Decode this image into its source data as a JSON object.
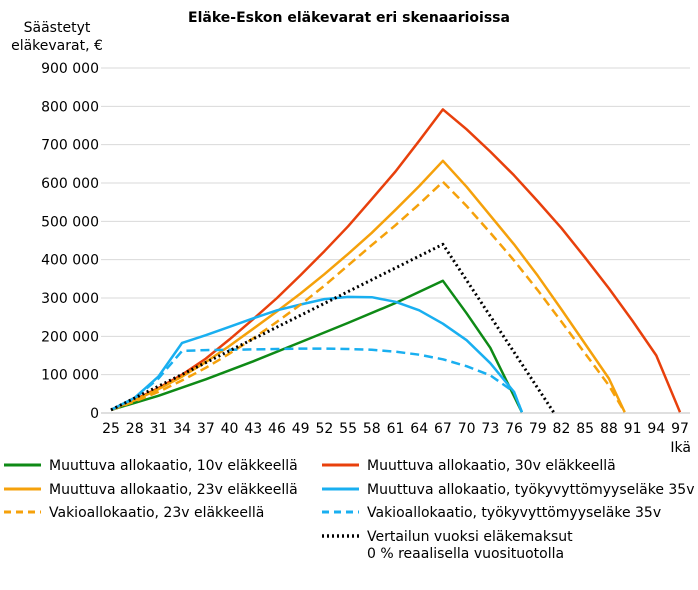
{
  "chart_data": {
    "type": "line",
    "title": "Eläke-Eskon eläkevarat eri skenaarioissa",
    "ylabel_lines": [
      "Säästetyt",
      "eläkevarat, €"
    ],
    "xlabel": "Ikä",
    "ylim": [
      0,
      900000
    ],
    "yticks": [
      0,
      100000,
      200000,
      300000,
      400000,
      500000,
      600000,
      700000,
      800000,
      900000
    ],
    "ytick_labels": [
      "0",
      "100 000",
      "200 000",
      "300 000",
      "400 000",
      "500 000",
      "600 000",
      "700 000",
      "800 000",
      "900 000"
    ],
    "xlim": [
      25,
      97
    ],
    "xticks": [
      25,
      28,
      31,
      34,
      37,
      40,
      43,
      46,
      49,
      52,
      55,
      58,
      61,
      64,
      67,
      70,
      73,
      76,
      79,
      82,
      85,
      88,
      91,
      94,
      97
    ],
    "grid": "horizontal",
    "legend_position": "bottom",
    "series": [
      {
        "name": "Muuttuva allokaatio, 10v eläkkeellä",
        "color": "#0e8a16",
        "style": "solid",
        "points": [
          [
            25,
            8000
          ],
          [
            31,
            45000
          ],
          [
            37,
            88000
          ],
          [
            43,
            135000
          ],
          [
            49,
            185000
          ],
          [
            55,
            235000
          ],
          [
            61,
            287000
          ],
          [
            67,
            345000
          ],
          [
            70,
            260000
          ],
          [
            73,
            170000
          ],
          [
            77,
            2000
          ]
        ]
      },
      {
        "name": "Muuttuva allokaatio, 30v eläkkeellä",
        "color": "#e8400c",
        "style": "solid",
        "points": [
          [
            25,
            8000
          ],
          [
            28,
            35000
          ],
          [
            31,
            65000
          ],
          [
            34,
            100000
          ],
          [
            37,
            142000
          ],
          [
            40,
            192000
          ],
          [
            43,
            245000
          ],
          [
            46,
            300000
          ],
          [
            49,
            360000
          ],
          [
            52,
            422000
          ],
          [
            55,
            487000
          ],
          [
            58,
            558000
          ],
          [
            61,
            630000
          ],
          [
            64,
            710000
          ],
          [
            67,
            792000
          ],
          [
            70,
            740000
          ],
          [
            73,
            682000
          ],
          [
            76,
            620000
          ],
          [
            79,
            552000
          ],
          [
            82,
            482000
          ],
          [
            85,
            405000
          ],
          [
            88,
            325000
          ],
          [
            91,
            240000
          ],
          [
            94,
            150000
          ],
          [
            97,
            2000
          ]
        ]
      },
      {
        "name": "Muuttuva allokaatio, 23v eläkkeellä",
        "color": "#f5a10b",
        "style": "solid",
        "points": [
          [
            25,
            8000
          ],
          [
            28,
            33000
          ],
          [
            31,
            62000
          ],
          [
            34,
            95000
          ],
          [
            37,
            133000
          ],
          [
            40,
            175000
          ],
          [
            43,
            220000
          ],
          [
            46,
            265000
          ],
          [
            49,
            312000
          ],
          [
            52,
            362000
          ],
          [
            55,
            415000
          ],
          [
            58,
            470000
          ],
          [
            61,
            530000
          ],
          [
            64,
            592000
          ],
          [
            67,
            658000
          ],
          [
            70,
            590000
          ],
          [
            73,
            515000
          ],
          [
            76,
            440000
          ],
          [
            79,
            358000
          ],
          [
            82,
            270000
          ],
          [
            85,
            180000
          ],
          [
            88,
            90000
          ],
          [
            90,
            2000
          ]
        ]
      },
      {
        "name": "Muuttuva allokaatio, työkyvyttömyyseläke 35v",
        "color": "#19aff0",
        "style": "solid",
        "points": [
          [
            25,
            8000
          ],
          [
            28,
            40000
          ],
          [
            31,
            95000
          ],
          [
            34,
            183000
          ],
          [
            37,
            203000
          ],
          [
            40,
            225000
          ],
          [
            43,
            247000
          ],
          [
            46,
            268000
          ],
          [
            49,
            283000
          ],
          [
            52,
            297000
          ],
          [
            55,
            303000
          ],
          [
            58,
            302000
          ],
          [
            61,
            290000
          ],
          [
            64,
            268000
          ],
          [
            67,
            233000
          ],
          [
            70,
            190000
          ],
          [
            73,
            130000
          ],
          [
            76,
            55000
          ],
          [
            77,
            2000
          ]
        ]
      },
      {
        "name": "Vakioallokaatio, 23v eläkkeellä",
        "color": "#f5a10b",
        "style": "dashed",
        "points": [
          [
            25,
            8000
          ],
          [
            28,
            30000
          ],
          [
            31,
            55000
          ],
          [
            34,
            85000
          ],
          [
            37,
            118000
          ],
          [
            40,
            155000
          ],
          [
            43,
            195000
          ],
          [
            46,
            238000
          ],
          [
            49,
            283000
          ],
          [
            52,
            332000
          ],
          [
            55,
            385000
          ],
          [
            58,
            438000
          ],
          [
            61,
            490000
          ],
          [
            64,
            545000
          ],
          [
            67,
            603000
          ],
          [
            70,
            540000
          ],
          [
            73,
            470000
          ],
          [
            76,
            398000
          ],
          [
            79,
            320000
          ],
          [
            82,
            238000
          ],
          [
            85,
            155000
          ],
          [
            88,
            72000
          ],
          [
            90,
            2000
          ]
        ]
      },
      {
        "name": "Vakioallokaatio, työkyvyttömyyseläke 35v",
        "color": "#19aff0",
        "style": "dashed",
        "points": [
          [
            25,
            8000
          ],
          [
            28,
            38000
          ],
          [
            31,
            90000
          ],
          [
            34,
            162000
          ],
          [
            37,
            164000
          ],
          [
            40,
            165000
          ],
          [
            43,
            166000
          ],
          [
            46,
            167000
          ],
          [
            49,
            168000
          ],
          [
            52,
            168000
          ],
          [
            55,
            167000
          ],
          [
            58,
            165000
          ],
          [
            61,
            160000
          ],
          [
            64,
            152000
          ],
          [
            67,
            140000
          ],
          [
            70,
            122000
          ],
          [
            73,
            98000
          ],
          [
            76,
            55000
          ],
          [
            77,
            2000
          ]
        ]
      },
      {
        "name": "Vertailun vuoksi eläkemaksut\n0 % reaalisella vuosituotolla",
        "color": "#000000",
        "style": "dotted",
        "points": [
          [
            25,
            8000
          ],
          [
            67,
            440000
          ],
          [
            81,
            2000
          ]
        ]
      }
    ]
  }
}
